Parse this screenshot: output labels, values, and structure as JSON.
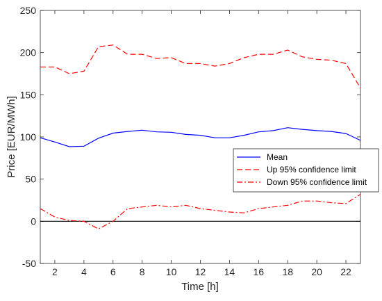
{
  "chart_data": {
    "type": "line",
    "title": "",
    "xlabel": "Time [h]",
    "ylabel": "Price [EUR/MWh]",
    "xlim": [
      1,
      23
    ],
    "ylim": [
      -50,
      250
    ],
    "x_ticks": [
      2,
      4,
      6,
      8,
      10,
      12,
      14,
      16,
      18,
      20,
      22
    ],
    "y_ticks": [
      -50,
      0,
      50,
      100,
      150,
      200,
      250
    ],
    "grid": false,
    "legend_position": "right",
    "zero_line": true,
    "x": [
      1,
      2,
      3,
      4,
      5,
      6,
      7,
      8,
      9,
      10,
      11,
      12,
      13,
      14,
      15,
      16,
      17,
      18,
      19,
      20,
      21,
      22,
      23
    ],
    "series": [
      {
        "name": "Mean",
        "color": "#0000ff",
        "style": "solid",
        "values": [
          99,
          94,
          88.5,
          89,
          98.5,
          104.5,
          106.5,
          108,
          106,
          105.5,
          103,
          102,
          99,
          99,
          102,
          106,
          107.5,
          111,
          109,
          107.5,
          106.5,
          104,
          96
        ]
      },
      {
        "name": "Up 95% confidence limit",
        "color": "#ff0000",
        "style": "dashed",
        "values": [
          183,
          183,
          175,
          178,
          207,
          209,
          198,
          198,
          193,
          194,
          187,
          187,
          184,
          187,
          194,
          198,
          198,
          203,
          195,
          192,
          191,
          187,
          158
        ]
      },
      {
        "name": "Down 95% confidence limit",
        "color": "#ff0000",
        "style": "dashdot",
        "values": [
          15,
          5,
          1,
          0,
          -9,
          0,
          15,
          17,
          19,
          17,
          19,
          15,
          13,
          11,
          10,
          15,
          17,
          19,
          24,
          24,
          22,
          21,
          32
        ]
      }
    ]
  }
}
